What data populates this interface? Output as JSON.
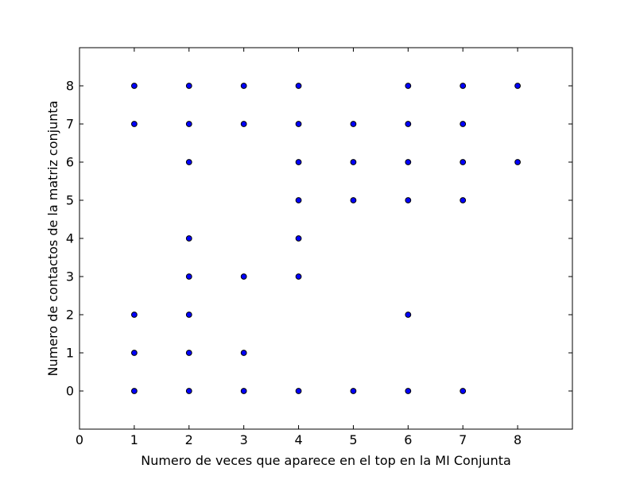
{
  "chart_data": {
    "type": "scatter",
    "title": "",
    "xlabel": "Numero de veces que aparece en el top en la MI Conjunta",
    "ylabel": "Numero de contactos de la matriz conjunta",
    "xlim": [
      0,
      9
    ],
    "ylim": [
      -1,
      9
    ],
    "xticks": [
      0,
      1,
      2,
      3,
      4,
      5,
      6,
      7,
      8
    ],
    "yticks": [
      0,
      1,
      2,
      3,
      4,
      5,
      6,
      7,
      8
    ],
    "grid": false,
    "legend": "none",
    "marker_face_color": "#0000ff",
    "marker_edge_color": "#000000",
    "series": [
      {
        "x": [
          1,
          1,
          1,
          1,
          1,
          2,
          2,
          2,
          2,
          2,
          2,
          2,
          2,
          3,
          3,
          3,
          3,
          3,
          4,
          4,
          4,
          4,
          4,
          4,
          4,
          5,
          5,
          5,
          5,
          6,
          6,
          6,
          6,
          6,
          6,
          7,
          7,
          7,
          7,
          8,
          8
        ],
        "y": [
          0,
          1,
          2,
          7,
          8,
          0,
          1,
          2,
          3,
          4,
          6,
          7,
          8,
          0,
          1,
          3,
          7,
          8,
          0,
          3,
          4,
          5,
          6,
          7,
          8,
          0,
          5,
          6,
          7,
          0,
          2,
          5,
          6,
          7,
          8,
          0,
          5,
          6,
          7,
          6,
          8
        ]
      },
      {
        "x": [
          7
        ],
        "y": [
          8
        ]
      }
    ]
  }
}
